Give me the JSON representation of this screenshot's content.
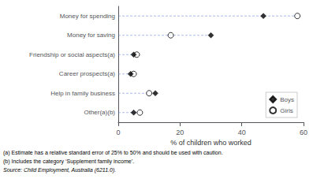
{
  "chart_data": {
    "type": "scatter",
    "categories": [
      "Other(a)(b)",
      "Help in family business",
      "Career prospects(a)",
      "Friendship or social aspects(a)",
      "Money for saving",
      "Money for spending"
    ],
    "series": [
      {
        "name": "Boys",
        "color": "#000000",
        "marker": "diamond",
        "values": [
          5,
          12,
          4,
          5,
          30,
          47
        ]
      },
      {
        "name": "Girls",
        "color": "#000000",
        "marker": "circle",
        "values": [
          7,
          10,
          5,
          6,
          17,
          58
        ]
      }
    ],
    "xlabel": "% of children who worked",
    "xlim": [
      0,
      60
    ],
    "xticks": [
      0,
      20,
      40,
      60
    ],
    "grid": false,
    "legend": "lower right",
    "annotations": [
      "(a) Estimate has a relative standard error of 25% to 50% and should be used with caution.",
      "(b) Includes the category ‘Supplement family income’.",
      "Source: Child Employment, Australia (6211.0)."
    ]
  }
}
